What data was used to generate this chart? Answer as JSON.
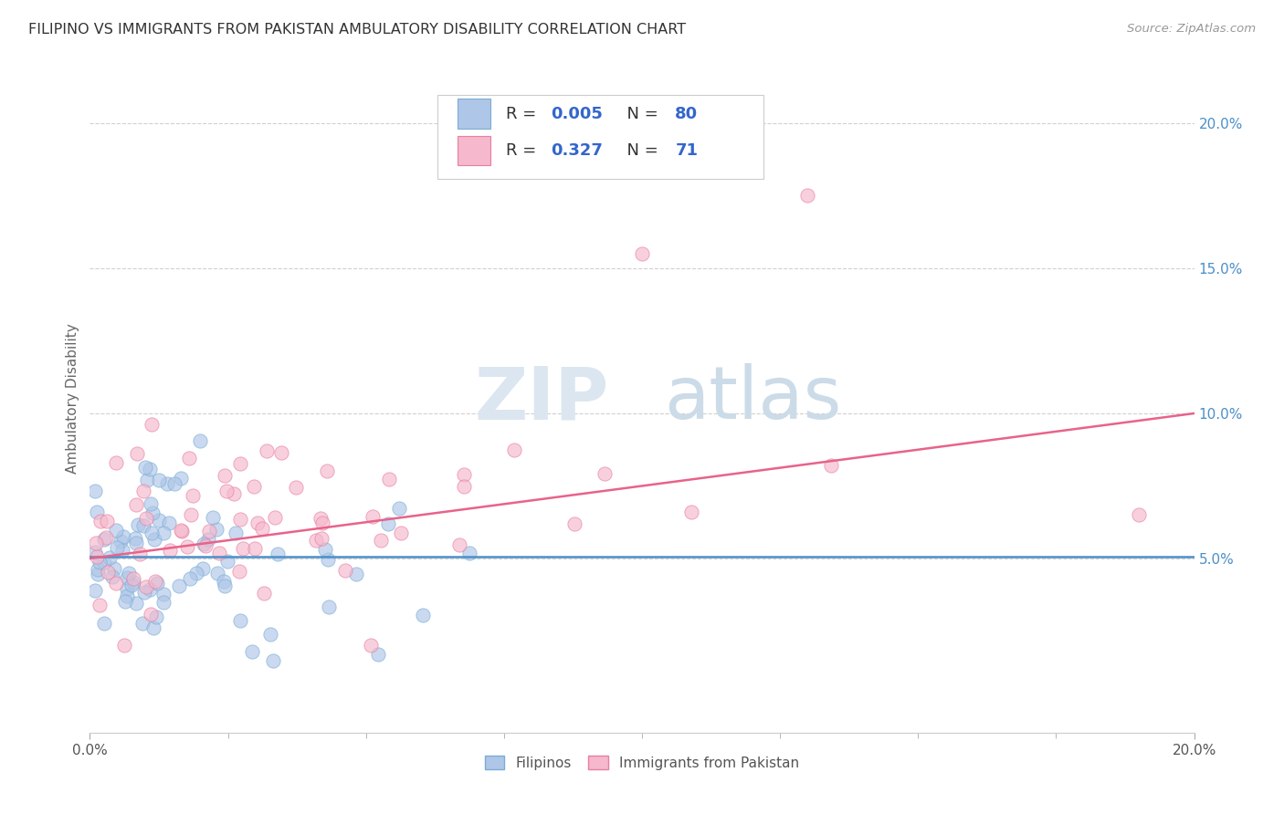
{
  "title": "FILIPINO VS IMMIGRANTS FROM PAKISTAN AMBULATORY DISABILITY CORRELATION CHART",
  "source": "Source: ZipAtlas.com",
  "ylabel": "Ambulatory Disability",
  "xlim": [
    0.0,
    0.2
  ],
  "ylim": [
    -0.01,
    0.22
  ],
  "plot_ylim": [
    -0.01,
    0.22
  ],
  "yticks": [
    0.05,
    0.1,
    0.15,
    0.2
  ],
  "xticks": [
    0.0,
    0.2
  ],
  "xticks_minor": [
    0.025,
    0.05,
    0.075,
    0.1,
    0.125,
    0.15,
    0.175
  ],
  "filipino_color": "#aec6e8",
  "filipino_edge": "#7aadd4",
  "pakistan_color": "#f5b8cc",
  "pakistan_edge": "#e87fa0",
  "trendline_filipino": "#4c8fc8",
  "trendline_pakistan": "#e8638a",
  "legend_text_color": "#3366cc",
  "legend_r_color": "#3366cc",
  "R_filipino": 0.005,
  "N_filipino": 80,
  "R_pakistan": 0.327,
  "N_pakistan": 71,
  "fil_trend_x": [
    0.0,
    0.2
  ],
  "fil_trend_y": [
    0.0505,
    0.0505
  ],
  "pak_trend_x": [
    0.0,
    0.2
  ],
  "pak_trend_y": [
    0.05,
    0.1
  ]
}
